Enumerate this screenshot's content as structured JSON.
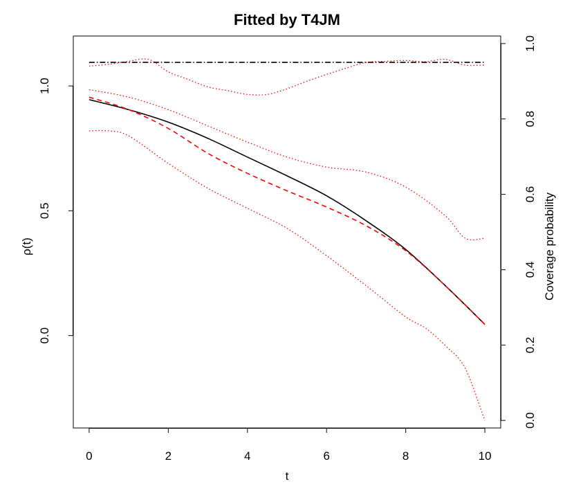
{
  "chart_data": {
    "type": "line",
    "title": "Fitted by T4JM",
    "xlabel": "t",
    "ylabel": "ρ(t)",
    "y2label": "Coverage probability",
    "xlim": [
      -0.4,
      10.4
    ],
    "ylim": [
      -0.37,
      1.2
    ],
    "y2lim": [
      -0.02,
      1.02
    ],
    "x_ticks": [
      0,
      2,
      4,
      6,
      8,
      10
    ],
    "y_ticks": [
      0.0,
      0.5,
      1.0
    ],
    "y2_ticks": [
      0.0,
      0.2,
      0.4,
      0.6,
      0.8,
      1.0
    ],
    "x_tick_labels": [
      "0",
      "2",
      "4",
      "6",
      "8",
      "10"
    ],
    "y_tick_labels": [
      "0.0",
      "0.5",
      "1.0"
    ],
    "y2_tick_labels": [
      "0.0",
      "0.2",
      "0.4",
      "0.6",
      "0.8",
      "1.0"
    ],
    "grid": false,
    "legend": "none",
    "series": [
      {
        "style": "solid",
        "color": "#000000",
        "axis": "left",
        "x": [
          0,
          1,
          2,
          3,
          4,
          5,
          6,
          7,
          8,
          9,
          10
        ],
        "y": [
          0.945,
          0.905,
          0.855,
          0.79,
          0.715,
          0.64,
          0.56,
          0.46,
          0.345,
          0.2,
          0.045
        ]
      },
      {
        "style": "dashed",
        "color": "#ff0000",
        "axis": "left",
        "x": [
          0,
          1,
          2,
          3,
          4,
          5,
          6,
          7,
          8,
          9,
          10
        ],
        "y": [
          0.955,
          0.905,
          0.83,
          0.73,
          0.65,
          0.58,
          0.515,
          0.44,
          0.34,
          0.2,
          0.045
        ]
      },
      {
        "style": "dotted",
        "color": "#ff0000",
        "axis": "left",
        "x": [
          0,
          1,
          2,
          3,
          4,
          5,
          6,
          7,
          8,
          9,
          9.5,
          10
        ],
        "y": [
          0.985,
          0.955,
          0.905,
          0.84,
          0.775,
          0.715,
          0.675,
          0.655,
          0.595,
          0.48,
          0.39,
          0.39
        ]
      },
      {
        "style": "dotted",
        "color": "#ff0000",
        "axis": "left",
        "x": [
          0,
          0.5,
          1,
          2,
          3,
          4,
          5,
          6,
          7,
          8,
          8.5,
          9,
          9.5,
          10
        ],
        "y": [
          0.82,
          0.82,
          0.8,
          0.69,
          0.59,
          0.51,
          0.43,
          0.32,
          0.2,
          0.075,
          0.03,
          -0.04,
          -0.13,
          -0.34
        ]
      },
      {
        "style": "dashdot",
        "color": "#000000",
        "axis": "right",
        "x": [
          0,
          10
        ],
        "y": [
          0.95,
          0.95
        ]
      },
      {
        "style": "dotted",
        "color": "#ff0000",
        "axis": "right",
        "x": [
          0,
          0.5,
          1,
          1.5,
          2,
          2.5,
          3,
          3.5,
          4,
          4.5,
          5,
          5.5,
          6,
          6.5,
          7,
          7.5,
          8,
          8.5,
          9,
          9.5,
          10
        ],
        "y": [
          0.94,
          0.945,
          0.953,
          0.958,
          0.925,
          0.905,
          0.885,
          0.875,
          0.865,
          0.865,
          0.88,
          0.9,
          0.918,
          0.935,
          0.95,
          0.953,
          0.955,
          0.952,
          0.958,
          0.943,
          0.943
        ]
      }
    ]
  }
}
